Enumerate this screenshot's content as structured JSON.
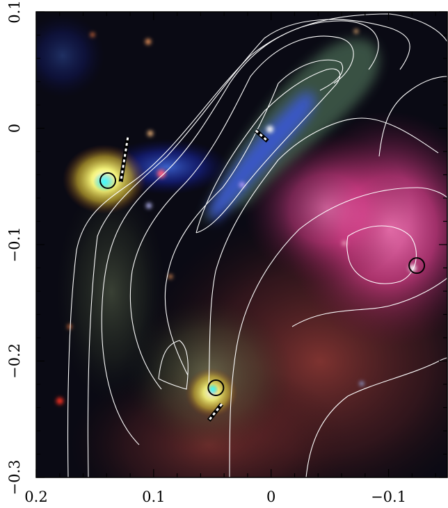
{
  "image": {
    "kind": "astronomical false-colour composite with white contour overlay",
    "colors": {
      "background": "#070710",
      "blue_emission": "#2a3cff",
      "green_filament": "#8fb070",
      "pink_nebula": "#ff5aa8",
      "hot_source": "#ffff60",
      "contour": "#ffffff"
    }
  },
  "axes": {
    "x": {
      "range": [
        0.2,
        -0.15
      ],
      "ticks": [
        "0.2",
        "0.1",
        "0",
        "−0.1"
      ]
    },
    "y": {
      "range": [
        -0.3,
        0.1
      ],
      "ticks": [
        "0.1",
        "0",
        "−0.1",
        "−0.2",
        "−0.3"
      ]
    }
  },
  "markers": {
    "circles": [
      {
        "x": 0.139,
        "y": -0.045
      },
      {
        "x": 0.047,
        "y": -0.223
      },
      {
        "x": -0.124,
        "y": -0.118
      }
    ],
    "dashed_bars": [
      {
        "x1": 0.122,
        "y1": -0.008,
        "x2": 0.128,
        "y2": -0.046
      },
      {
        "x1": 0.013,
        "y1": -0.002,
        "x2": 0.003,
        "y2": -0.011
      },
      {
        "x1": 0.042,
        "y1": -0.237,
        "x2": 0.053,
        "y2": -0.251
      }
    ]
  }
}
